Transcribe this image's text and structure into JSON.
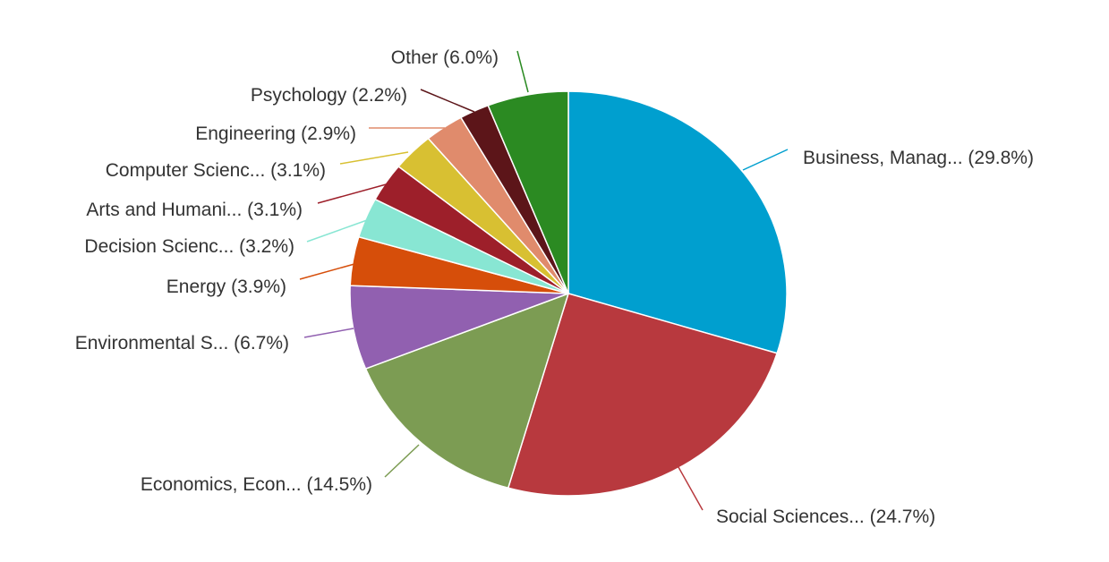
{
  "chart_data": {
    "type": "pie",
    "title": "",
    "start": "top",
    "direction": "clockwise",
    "slices": [
      {
        "label": "Business, Manag... (29.8%)",
        "value": 29.8,
        "color": "#009fcf"
      },
      {
        "label": "Social Sciences... (24.7%)",
        "value": 24.7,
        "color": "#b8393e"
      },
      {
        "label": "Economics, Econ... (14.5%)",
        "value": 14.5,
        "color": "#7c9c53"
      },
      {
        "label": "Environmental S... (6.7%)",
        "value": 6.7,
        "color": "#9160b0"
      },
      {
        "label": "Energy (3.9%)",
        "value": 3.9,
        "color": "#d64e0a"
      },
      {
        "label": "Decision Scienc... (3.2%)",
        "value": 3.2,
        "color": "#88e6d3"
      },
      {
        "label": "Arts and Humani... (3.1%)",
        "value": 3.1,
        "color": "#9d1f2a"
      },
      {
        "label": "Computer Scienc... (3.1%)",
        "value": 3.1,
        "color": "#d8c032"
      },
      {
        "label": "Engineering (2.9%)",
        "value": 2.9,
        "color": "#e08b6c"
      },
      {
        "label": "Psychology (2.2%)",
        "value": 2.2,
        "color": "#5c1519"
      },
      {
        "label": "Other (6.0%)",
        "value": 6.0,
        "color": "#2b8a22"
      }
    ]
  }
}
